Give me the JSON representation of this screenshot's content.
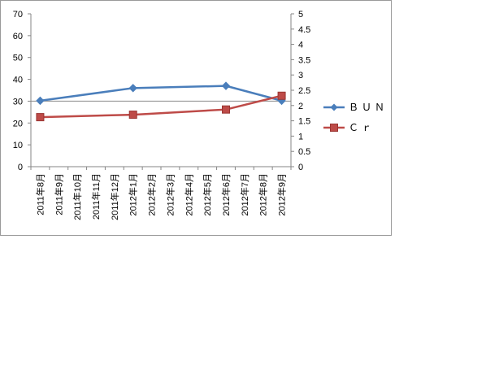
{
  "chart_data": {
    "type": "line",
    "categories": [
      "2011年8月",
      "2011年9月",
      "2011年10月",
      "2011年11月",
      "2011年12月",
      "2012年1月",
      "2012年2月",
      "2012年3月",
      "2012年4月",
      "2012年5月",
      "2012年6月",
      "2012年7月",
      "2012年8月",
      "2012年9月"
    ],
    "y_left": {
      "min": 0,
      "max": 70,
      "step": 10,
      "ticks": [
        "0",
        "10",
        "20",
        "30",
        "40",
        "50",
        "60",
        "70"
      ]
    },
    "y_right": {
      "min": 0,
      "max": 5,
      "step": 0.5,
      "ticks": [
        "0",
        "0.5",
        "1",
        "1.5",
        "2",
        "2.5",
        "3",
        "3.5",
        "4",
        "4.5",
        "5"
      ]
    },
    "series": [
      {
        "name": "ＢＵＮ",
        "axis": "left",
        "color": "#4a7ebb",
        "marker": "diamond",
        "points": [
          {
            "x": "2011年8月",
            "y": 30.2
          },
          {
            "x": "2012年1月",
            "y": 36
          },
          {
            "x": "2012年6月",
            "y": 37
          },
          {
            "x": "2012年9月",
            "y": 30.2
          }
        ]
      },
      {
        "name": "Ｃｒ",
        "axis": "right",
        "color": "#be4b48",
        "marker": "square",
        "points": [
          {
            "x": "2011年8月",
            "y": 1.62
          },
          {
            "x": "2012年1月",
            "y": 1.7
          },
          {
            "x": "2012年6月",
            "y": 1.87
          },
          {
            "x": "2012年9月",
            "y": 2.32
          }
        ]
      }
    ],
    "grid": "horizontal-at-left-30",
    "legend_position": "right"
  }
}
